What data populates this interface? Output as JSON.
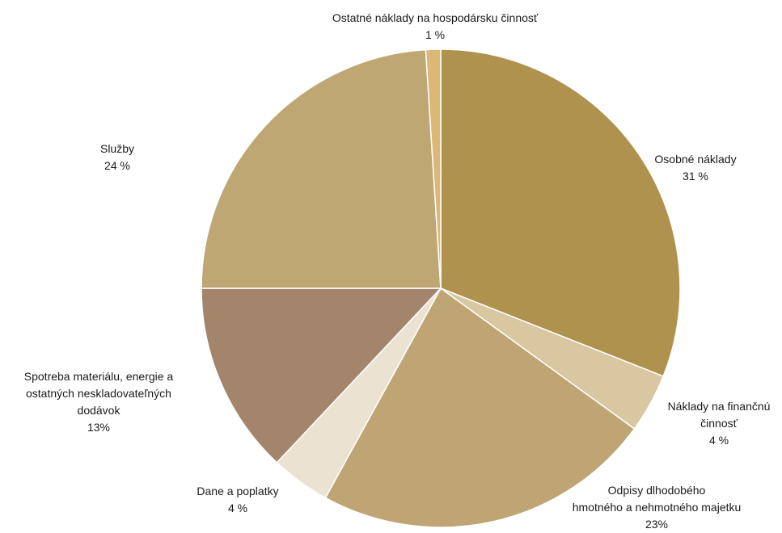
{
  "chart_data": {
    "type": "pie",
    "start_angle_deg": 0,
    "direction": "clockwise",
    "slices": [
      {
        "label_lines": [
          "Osobné náklady"
        ],
        "value_label": "31 %",
        "value": 31,
        "color": "#b0924f"
      },
      {
        "label_lines": [
          "Náklady na finančnú",
          "činnosť"
        ],
        "value_label": "4 %",
        "value": 4,
        "color": "#d8c7a0"
      },
      {
        "label_lines": [
          "Odpisy dlhodobého",
          "hmotného a nehmotného majetku"
        ],
        "value_label": "23%",
        "value": 23,
        "color": "#bfa574"
      },
      {
        "label_lines": [
          "Dane a poplatky"
        ],
        "value_label": "4 %",
        "value": 4,
        "color": "#ebe2d1"
      },
      {
        "label_lines": [
          "Spotreba materiálu, energie a",
          "ostatných neskladovateľných",
          "dodávok"
        ],
        "value_label": "13%",
        "value": 13,
        "color": "#a3856b"
      },
      {
        "label_lines": [
          "Služby"
        ],
        "value_label": "24 %",
        "value": 24,
        "color": "#bfa774"
      },
      {
        "label_lines": [
          "Ostatné náklady na hospodársku činnosť"
        ],
        "value_label": "1 %",
        "value": 1,
        "color": "#dbb877"
      }
    ]
  }
}
